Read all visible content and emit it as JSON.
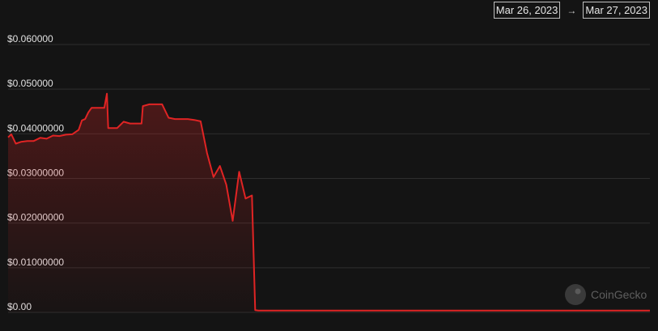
{
  "date_range": {
    "start": "Mar 26, 2023",
    "arrow": "→",
    "end": "Mar 27, 2023"
  },
  "watermark": {
    "text": "CoinGecko",
    "icon": "coingecko-logo-icon"
  },
  "colors": {
    "line": "#e02424",
    "background": "#141414",
    "grid": "#2e2e2e",
    "tick_text": "#e0e0e0"
  },
  "chart_data": {
    "type": "area",
    "title": "",
    "xlabel": "",
    "ylabel": "",
    "grid": true,
    "ylim": [
      0,
      0.06
    ],
    "xlim": [
      0,
      100
    ],
    "y_ticks": [
      {
        "value": 0.06,
        "label": "$0.060000"
      },
      {
        "value": 0.05,
        "label": "$0.050000"
      },
      {
        "value": 0.04,
        "label": "$0.04000000"
      },
      {
        "value": 0.03,
        "label": "$0.03000000"
      },
      {
        "value": 0.02,
        "label": "$0.02000000"
      },
      {
        "value": 0.01,
        "label": "$0.01000000"
      },
      {
        "value": 0.0,
        "label": "$0.00"
      }
    ],
    "series": [
      {
        "x": [
          0,
          0.5,
          1.2,
          2,
          3,
          4,
          5,
          6,
          7,
          8,
          9,
          10,
          11,
          11.5,
          12,
          12.5,
          13,
          14,
          15,
          15.4,
          15.6,
          16,
          17,
          18,
          19,
          20,
          20.8,
          21,
          22,
          23,
          24,
          25,
          26,
          27.5,
          28,
          29,
          30,
          30.5,
          31,
          32,
          33,
          34,
          35,
          36,
          37,
          38,
          38.5,
          39,
          40,
          41,
          42,
          43,
          43.5,
          43.8,
          44.5,
          45.5,
          46,
          47,
          48,
          49,
          50,
          51,
          52,
          55,
          60,
          65,
          70,
          75,
          80,
          85,
          90,
          95,
          100
        ],
        "y": [
          0.0392,
          0.0399,
          0.0378,
          0.0382,
          0.0384,
          0.0384,
          0.0391,
          0.0389,
          0.0396,
          0.0395,
          0.0398,
          0.0399,
          0.0409,
          0.043,
          0.0433,
          0.0448,
          0.0458,
          0.0458,
          0.0458,
          0.049,
          0.0413,
          0.0413,
          0.0413,
          0.0427,
          0.0423,
          0.0423,
          0.0423,
          0.0462,
          0.0466,
          0.0466,
          0.0466,
          0.0436,
          0.0433,
          0.0433,
          0.0433,
          0.0431,
          0.0428,
          0.0392,
          0.0357,
          0.0303,
          0.0328,
          0.0286,
          0.0205,
          0.0315,
          0.0255,
          0.0262,
          0.0005,
          0.0004,
          0.0004,
          0.0004,
          0.0004,
          0.0004,
          0.0004,
          0.0004,
          0.0004,
          0.0004,
          0.0004,
          0.0004,
          0.0004,
          0.0004,
          0.0004,
          0.0004,
          0.0004,
          0.0004,
          0.0004,
          0.0004,
          0.0004,
          0.0004,
          0.0004,
          0.0004,
          0.0004,
          0.0004,
          0.0004
        ]
      }
    ]
  }
}
